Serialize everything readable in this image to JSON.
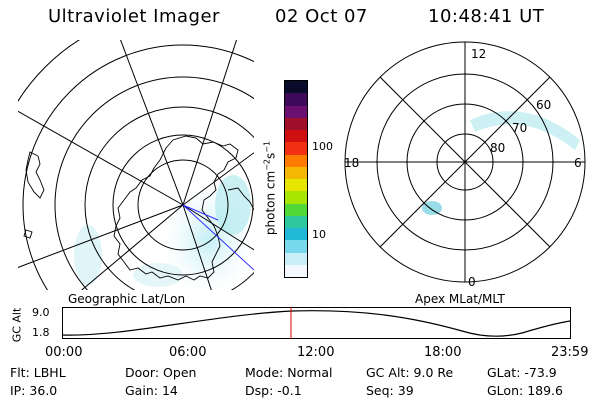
{
  "header": {
    "instrument": "Ultraviolet Imager",
    "date": "02 Oct 07",
    "time": "10:48:41 UT"
  },
  "left_map": {
    "caption": "Geographic Lat/Lon"
  },
  "colorbar": {
    "unit_label": "photon cm",
    "unit_exp1": "−2",
    "unit_mid": "s",
    "unit_exp2": "−1",
    "ticks": [
      "100",
      "10"
    ],
    "colors": [
      "#0a0a2a",
      "#3d0a5a",
      "#6a1070",
      "#a0102a",
      "#d01010",
      "#f03010",
      "#ff7a00",
      "#f5b800",
      "#e6e600",
      "#a8e600",
      "#50d838",
      "#2ec8a0",
      "#22b8d8",
      "#78d8ee",
      "#c8eef8",
      "#f2faff"
    ]
  },
  "right_map": {
    "caption": "Apex MLat/MLT",
    "mlt_labels": {
      "top": "12",
      "left": "18",
      "right": "6",
      "bottom": "0"
    },
    "lat_labels": [
      "60",
      "70",
      "80"
    ]
  },
  "altitude_strip": {
    "axis_label": "GC Alt",
    "y_ticks": [
      "9.0",
      "1.8"
    ],
    "x_ticks": [
      "00:00",
      "06:00",
      "12:00",
      "18:00",
      "23:59"
    ]
  },
  "status": {
    "row1": [
      {
        "label": "Flt:",
        "value": "LBHL"
      },
      {
        "label": "Door:",
        "value": "Open"
      },
      {
        "label": "Mode:",
        "value": "Normal"
      },
      {
        "label": "GC Alt:",
        "value": "9.0 Re"
      },
      {
        "label": "GLat:",
        "value": "-73.9"
      }
    ],
    "row2": [
      {
        "label": "IP:",
        "value": "36.0"
      },
      {
        "label": "Gain:",
        "value": "14"
      },
      {
        "label": "Dsp:",
        "value": "-0.1"
      },
      {
        "label": "Seq:",
        "value": "39"
      },
      {
        "label": "GLon:",
        "value": "189.6"
      }
    ]
  }
}
